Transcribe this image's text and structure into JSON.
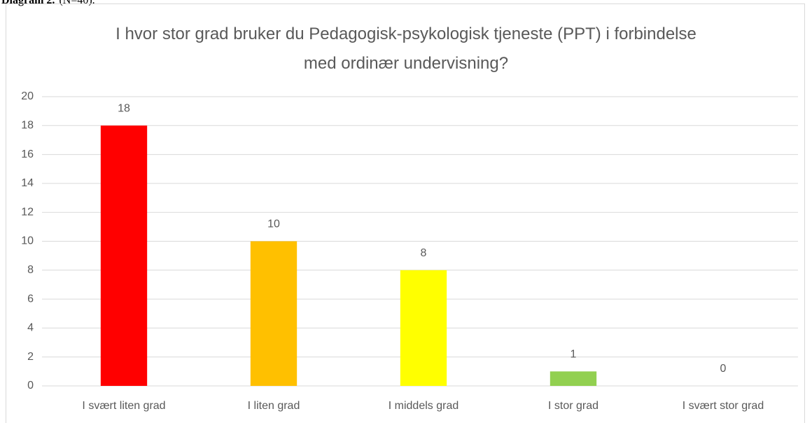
{
  "caption": {
    "label": "Diagram 2.",
    "note": "(N=40)."
  },
  "chart_data": {
    "type": "bar",
    "title": "I hvor stor grad bruker du Pedagogisk-psykologisk tjeneste (PPT) i forbindelse med ordinær undervisning?",
    "categories": [
      "I svært liten grad",
      "I liten grad",
      "I middels grad",
      "I stor grad",
      "I svært stor grad"
    ],
    "values": [
      18,
      10,
      8,
      1,
      0
    ],
    "colors": [
      "#ff0000",
      "#ffc000",
      "#ffff00",
      "#92d050",
      "#00b050"
    ],
    "ylim": [
      0,
      20
    ],
    "yticks": [
      0,
      2,
      4,
      6,
      8,
      10,
      12,
      14,
      16,
      18,
      20
    ],
    "grid": true
  }
}
